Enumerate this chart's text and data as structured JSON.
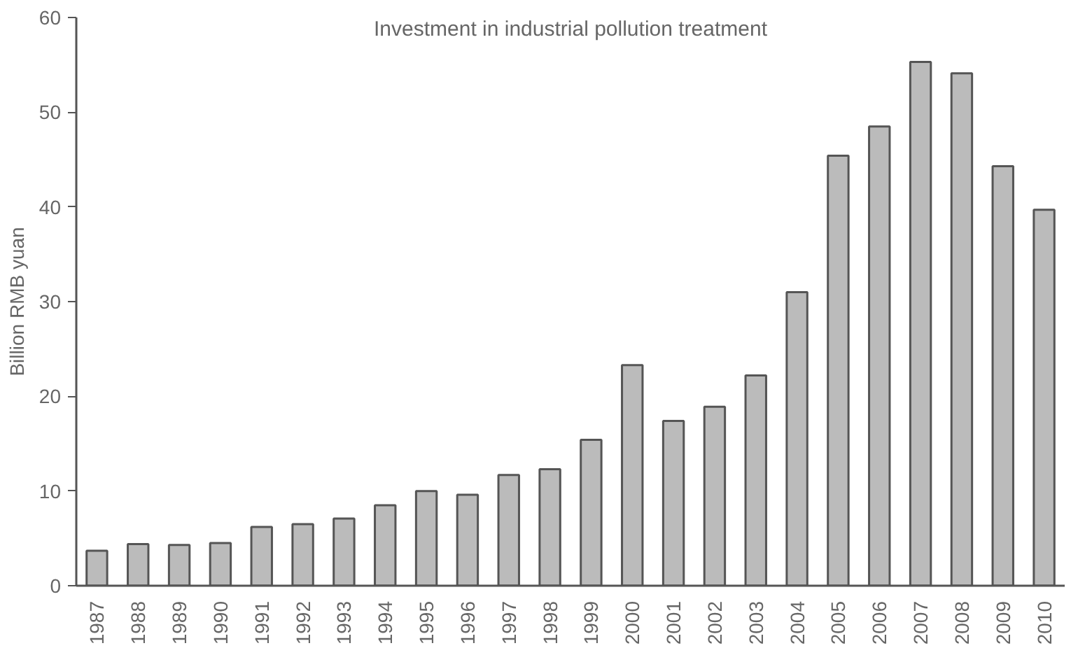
{
  "chart_data": {
    "type": "bar",
    "title": "Investment in industrial pollution treatment",
    "ylabel": "Billion RMB yuan",
    "categories": [
      "1987",
      "1988",
      "1989",
      "1990",
      "1991",
      "1992",
      "1993",
      "1994",
      "1995",
      "1996",
      "1997",
      "1998",
      "1999",
      "2000",
      "2001",
      "2002",
      "2003",
      "2004",
      "2005",
      "2006",
      "2007",
      "2008",
      "2009",
      "2010"
    ],
    "values": [
      3.7,
      4.4,
      4.3,
      4.5,
      6.2,
      6.5,
      7.1,
      8.5,
      10.0,
      9.6,
      11.7,
      12.3,
      15.4,
      23.3,
      17.4,
      18.9,
      22.2,
      31.0,
      45.4,
      48.5,
      55.3,
      54.1,
      44.3,
      39.7
    ],
    "color": "#bbbbbb",
    "ylim": [
      0,
      60
    ],
    "yticks": [
      0,
      10,
      20,
      30,
      40,
      50,
      60
    ],
    "grid": false
  }
}
